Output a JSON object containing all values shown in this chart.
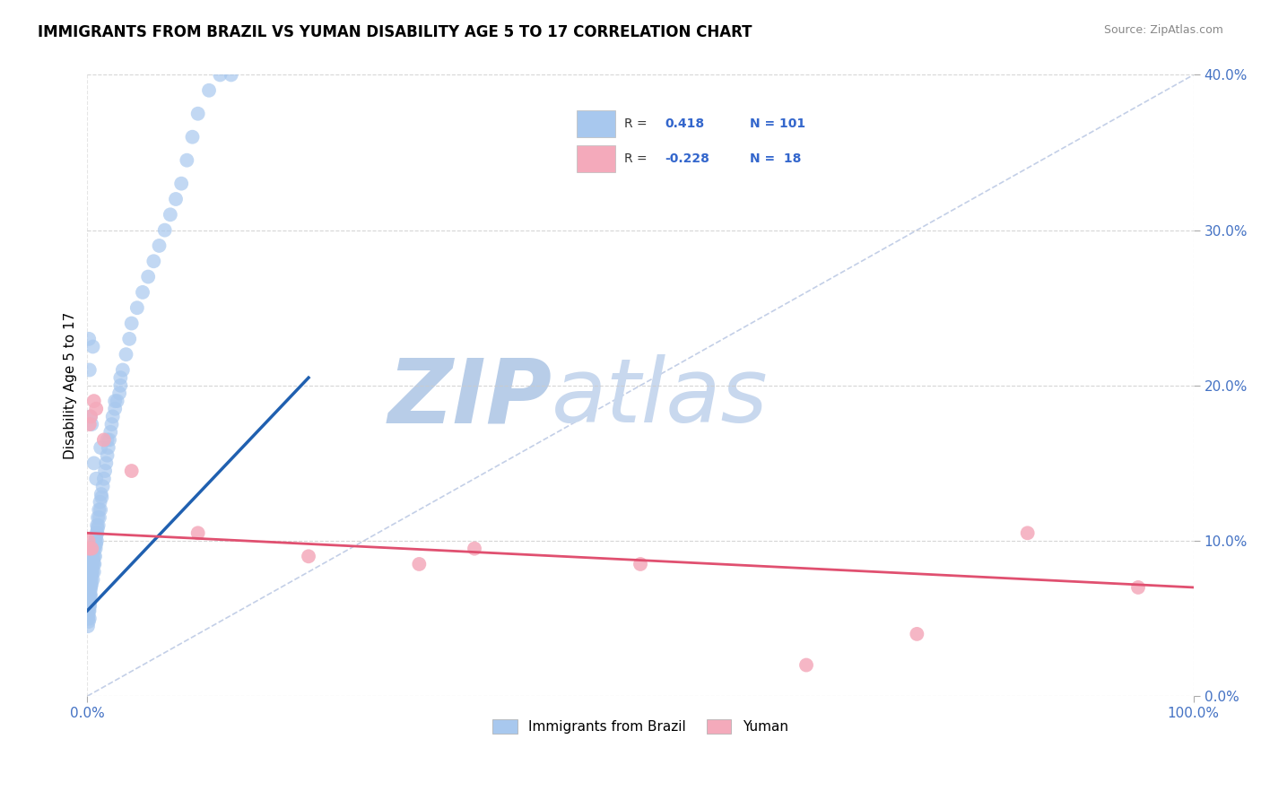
{
  "title": "IMMIGRANTS FROM BRAZIL VS YUMAN DISABILITY AGE 5 TO 17 CORRELATION CHART",
  "source": "Source: ZipAtlas.com",
  "ylabel_label": "Disability Age 5 to 17",
  "legend_labels": [
    "Immigrants from Brazil",
    "Yuman"
  ],
  "r_brazil": 0.418,
  "n_brazil": 101,
  "r_yuman": -0.228,
  "n_yuman": 18,
  "xlim": [
    0.0,
    100.0
  ],
  "ylim": [
    0.0,
    40.0
  ],
  "blue_color": "#A8C8EE",
  "pink_color": "#F4AABB",
  "blue_line_color": "#2060B0",
  "pink_line_color": "#E05070",
  "grid_color": "#CCCCCC",
  "brazil_x": [
    0.05,
    0.08,
    0.1,
    0.12,
    0.13,
    0.15,
    0.15,
    0.17,
    0.18,
    0.2,
    0.2,
    0.22,
    0.23,
    0.25,
    0.25,
    0.27,
    0.28,
    0.3,
    0.3,
    0.32,
    0.33,
    0.35,
    0.37,
    0.38,
    0.4,
    0.4,
    0.42,
    0.45,
    0.45,
    0.48,
    0.5,
    0.52,
    0.55,
    0.57,
    0.6,
    0.6,
    0.63,
    0.65,
    0.68,
    0.7,
    0.72,
    0.75,
    0.78,
    0.8,
    0.83,
    0.85,
    0.88,
    0.9,
    0.93,
    0.95,
    1.0,
    1.05,
    1.1,
    1.15,
    1.2,
    1.25,
    1.3,
    1.4,
    1.5,
    1.6,
    1.7,
    1.8,
    1.9,
    2.0,
    2.1,
    2.2,
    2.3,
    2.5,
    2.7,
    2.9,
    3.0,
    3.2,
    3.5,
    3.8,
    4.0,
    4.5,
    5.0,
    5.5,
    6.0,
    6.5,
    7.0,
    7.5,
    8.0,
    8.5,
    9.0,
    9.5,
    10.0,
    11.0,
    12.0,
    13.0,
    3.0,
    2.5,
    1.8,
    0.6,
    0.4,
    0.3,
    1.2,
    0.8,
    0.5,
    0.2,
    0.15
  ],
  "brazil_y": [
    4.5,
    5.0,
    5.2,
    4.8,
    5.5,
    5.8,
    6.0,
    6.2,
    5.5,
    5.0,
    6.5,
    6.0,
    5.8,
    6.5,
    7.0,
    6.8,
    7.2,
    6.5,
    7.5,
    7.0,
    7.8,
    7.5,
    8.0,
    7.2,
    8.5,
    7.8,
    8.2,
    8.0,
    9.0,
    8.5,
    7.5,
    8.8,
    9.5,
    8.5,
    9.0,
    8.0,
    9.5,
    8.5,
    9.8,
    9.0,
    10.0,
    9.5,
    10.2,
    9.8,
    10.5,
    10.0,
    11.0,
    10.5,
    10.8,
    11.5,
    11.0,
    12.0,
    11.5,
    12.5,
    12.0,
    13.0,
    12.8,
    13.5,
    14.0,
    14.5,
    15.0,
    15.5,
    16.0,
    16.5,
    17.0,
    17.5,
    18.0,
    18.5,
    19.0,
    19.5,
    20.0,
    21.0,
    22.0,
    23.0,
    24.0,
    25.0,
    26.0,
    27.0,
    28.0,
    29.0,
    30.0,
    31.0,
    32.0,
    33.0,
    34.5,
    36.0,
    37.5,
    39.0,
    40.5,
    42.0,
    20.5,
    19.0,
    16.5,
    15.0,
    17.5,
    18.0,
    16.0,
    14.0,
    22.5,
    21.0,
    23.0
  ],
  "yuman_x": [
    0.1,
    0.15,
    0.2,
    0.3,
    0.4,
    0.6,
    0.8,
    1.5,
    4.0,
    10.0,
    20.0,
    30.0,
    35.0,
    50.0,
    65.0,
    75.0,
    85.0,
    95.0
  ],
  "yuman_y": [
    10.0,
    9.5,
    17.5,
    18.0,
    9.5,
    19.0,
    18.5,
    16.5,
    14.5,
    10.5,
    9.0,
    8.5,
    9.5,
    8.5,
    2.0,
    4.0,
    10.5,
    7.0
  ]
}
